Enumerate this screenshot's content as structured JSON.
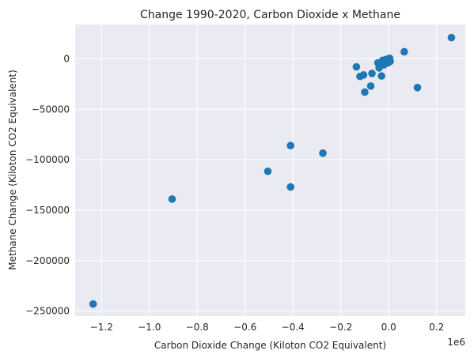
{
  "chart_data": {
    "type": "scatter",
    "title": "Change 1990-2020, Carbon Dioxide x Methane",
    "xlabel": "Carbon Dioxide Change (Kiloton CO2 Equivalent)",
    "ylabel": "Methane Change (Kiloton CO2 Equivalent)",
    "x_offset_label": "1e6",
    "xlim": [
      -1.31,
      0.32
    ],
    "ylim": [
      -255000,
      34000
    ],
    "x_ticks": [
      -1.2,
      -1.0,
      -0.8,
      -0.6,
      -0.4,
      -0.2,
      0.0,
      0.2
    ],
    "x_tick_labels": [
      "−1.2",
      "−1.0",
      "−0.8",
      "−0.6",
      "−0.4",
      "−0.2",
      "0.0",
      "0.2"
    ],
    "y_ticks": [
      0,
      -50000,
      -100000,
      -150000,
      -200000,
      -250000
    ],
    "y_tick_labels": [
      "0",
      "−50000",
      "−100000",
      "−150000",
      "−200000",
      "−250000"
    ],
    "grid": true,
    "colors": {
      "marker": "#1f77b4",
      "plot_bg": "#eaeaf2",
      "grid": "#ffffff"
    },
    "points": [
      {
        "x": -1.235,
        "y": -243000
      },
      {
        "x": -0.905,
        "y": -139000
      },
      {
        "x": -0.505,
        "y": -111500
      },
      {
        "x": -0.41,
        "y": -86000
      },
      {
        "x": -0.41,
        "y": -127000
      },
      {
        "x": -0.275,
        "y": -93500
      },
      {
        "x": -0.135,
        "y": -8000
      },
      {
        "x": -0.12,
        "y": -17500
      },
      {
        "x": -0.105,
        "y": -16000
      },
      {
        "x": -0.1,
        "y": -33000
      },
      {
        "x": -0.075,
        "y": -27000
      },
      {
        "x": -0.07,
        "y": -14500
      },
      {
        "x": -0.045,
        "y": -4000
      },
      {
        "x": -0.04,
        "y": -9000
      },
      {
        "x": -0.035,
        "y": -4000
      },
      {
        "x": -0.03,
        "y": -17000
      },
      {
        "x": -0.025,
        "y": -1500
      },
      {
        "x": -0.022,
        "y": -3000
      },
      {
        "x": -0.02,
        "y": -6000
      },
      {
        "x": -0.017,
        "y": -2000
      },
      {
        "x": -0.012,
        "y": -1000
      },
      {
        "x": -0.01,
        "y": -3500
      },
      {
        "x": -0.008,
        "y": -500
      },
      {
        "x": -0.005,
        "y": -2000
      },
      {
        "x": -0.003,
        "y": -4000
      },
      {
        "x": 0.0,
        "y": -1500
      },
      {
        "x": 0.002,
        "y": -3000
      },
      {
        "x": 0.004,
        "y": 500
      },
      {
        "x": 0.006,
        "y": -2500
      },
      {
        "x": 0.065,
        "y": 7000
      },
      {
        "x": 0.12,
        "y": -28500
      },
      {
        "x": 0.262,
        "y": 21000
      }
    ]
  }
}
